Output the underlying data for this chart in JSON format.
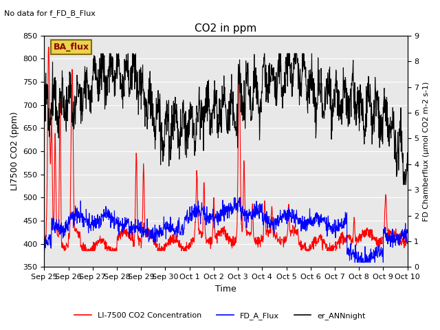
{
  "title": "CO2 in ppm",
  "top_left_text": "No data for f_FD_B_Flux",
  "xlabel": "Time",
  "ylabel_left": "LI7500 CO2 (ppm)",
  "ylabel_right": "FD Chamberflux (μmol CO2 m-2 s-1)",
  "ylim_left": [
    350,
    850
  ],
  "ylim_right": [
    0.0,
    9.0
  ],
  "yticks_left": [
    350,
    400,
    450,
    500,
    550,
    600,
    650,
    700,
    750,
    800,
    850
  ],
  "yticks_right": [
    0.0,
    1.0,
    2.0,
    3.0,
    4.0,
    5.0,
    6.0,
    7.0,
    8.0,
    9.0
  ],
  "legend_entries": [
    {
      "label": "LI-7500 CO2 Concentration",
      "color": "red",
      "lw": 1.2
    },
    {
      "label": "FD_A_Flux",
      "color": "blue",
      "lw": 1.2
    },
    {
      "label": "er_ANNnight",
      "color": "black",
      "lw": 1.2
    }
  ],
  "ba_flux_box": {
    "text": "BA_flux",
    "facecolor": "#e8d44d",
    "edgecolor": "#8B6914"
  },
  "plot_bg_color": "#e8e8e8",
  "fig_bg_color": "#ffffff",
  "grid_color": "#ffffff",
  "x_tick_labels": [
    "Sep 25",
    "Sep 26",
    "Sep 27",
    "Sep 28",
    "Sep 29",
    "Sep 30",
    "Oct 1",
    "Oct 2",
    "Oct 3",
    "Oct 4",
    "Oct 5",
    "Oct 6",
    "Oct 7",
    "Oct 8",
    "Oct 9",
    "Oct 10"
  ],
  "x_tick_positions": [
    0,
    1,
    2,
    3,
    4,
    5,
    6,
    7,
    8,
    9,
    10,
    11,
    12,
    13,
    14,
    15
  ]
}
